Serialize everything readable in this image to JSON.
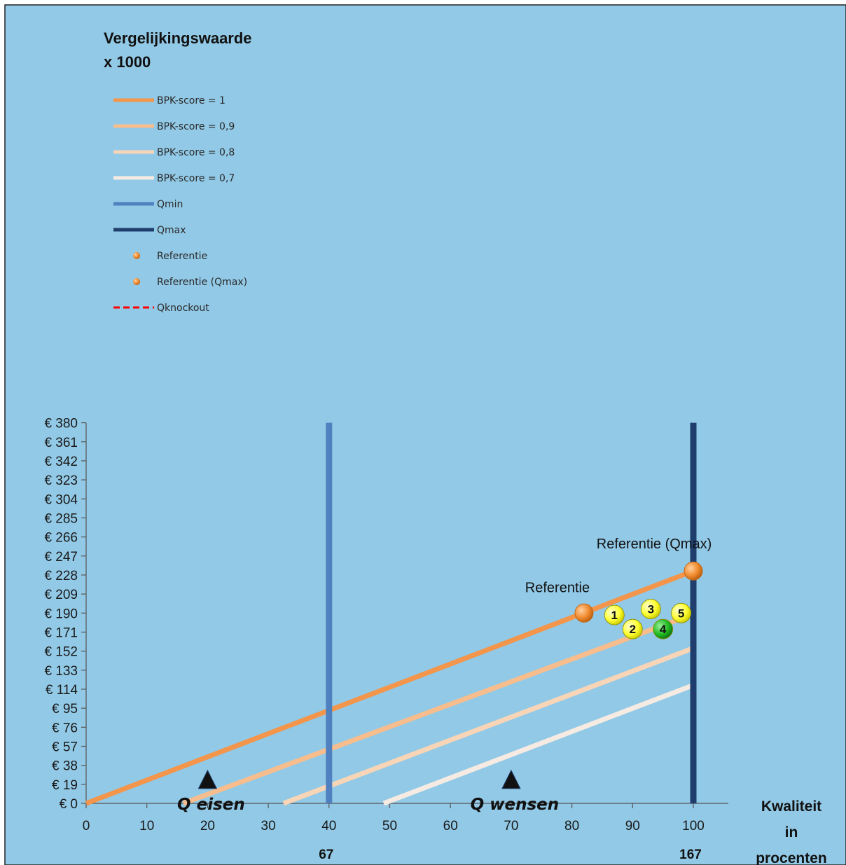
{
  "chart_data": {
    "type": "line",
    "ylabel": "Vergelijkingswaarde x 1000",
    "ylabel_lines": [
      "Vergelijkingswaarde",
      "x 1000"
    ],
    "xlabel": "Kwaliteit in procenten",
    "xlabel_lines": [
      "Kwaliteit",
      "in",
      "procenten"
    ],
    "xlim": [
      0,
      105
    ],
    "ylim": [
      0,
      380
    ],
    "x_ticks": [
      0,
      10,
      20,
      30,
      40,
      50,
      60,
      70,
      80,
      90,
      100
    ],
    "y_ticks": [
      0,
      19,
      38,
      57,
      76,
      95,
      114,
      133,
      152,
      171,
      190,
      209,
      228,
      247,
      266,
      285,
      304,
      323,
      342,
      361,
      380
    ],
    "y_prefix": "€ ",
    "grid": false,
    "legend_position": "top-left",
    "background": "#92c9e6",
    "series": [
      {
        "name": "BPK-score = 1",
        "color": "#f3954a",
        "x": [
          0,
          100
        ],
        "y": [
          0,
          232
        ]
      },
      {
        "name": "BPK-score = 0,9",
        "color": "#f7bd8d",
        "x": [
          16,
          100
        ],
        "y": [
          0,
          189
        ]
      },
      {
        "name": "BPK-score = 0,8",
        "color": "#f8d5b7",
        "x": [
          32.5,
          100
        ],
        "y": [
          0,
          155
        ]
      },
      {
        "name": "BPK-score = 0,7",
        "color": "#f6ebe2",
        "x": [
          49,
          100
        ],
        "y": [
          0,
          118
        ]
      }
    ],
    "vertical_lines": [
      {
        "name": "Qmin",
        "x": 40,
        "color": "#4f81c0",
        "sublabel": "67"
      },
      {
        "name": "Qmax",
        "x": 100,
        "color": "#1f3e6d",
        "sublabel": "167"
      }
    ],
    "knockout_legend": {
      "name": "Qknockout",
      "color": "#ff0000"
    },
    "reference_points": [
      {
        "name": "Referentie",
        "label": "Referentie",
        "x": 82,
        "y": 190,
        "color": "#f08a2c"
      },
      {
        "name": "Referentie (Qmax)",
        "label": "Referentie (Qmax)",
        "x": 100,
        "y": 232,
        "color": "#f08a2c"
      }
    ],
    "bids": [
      {
        "label": "1",
        "x": 87,
        "y": 188,
        "color": "#ffff33"
      },
      {
        "label": "2",
        "x": 90,
        "y": 174,
        "color": "#ffff33"
      },
      {
        "label": "3",
        "x": 93,
        "y": 194,
        "color": "#ffff33"
      },
      {
        "label": "4",
        "x": 95,
        "y": 174,
        "color": "#22bb22"
      },
      {
        "label": "5",
        "x": 98,
        "y": 190,
        "color": "#ffff33"
      }
    ],
    "markers": [
      {
        "label": "Q eisen",
        "x": 20,
        "y": 19
      },
      {
        "label": "Q wensen",
        "x": 70,
        "y": 19
      }
    ]
  }
}
